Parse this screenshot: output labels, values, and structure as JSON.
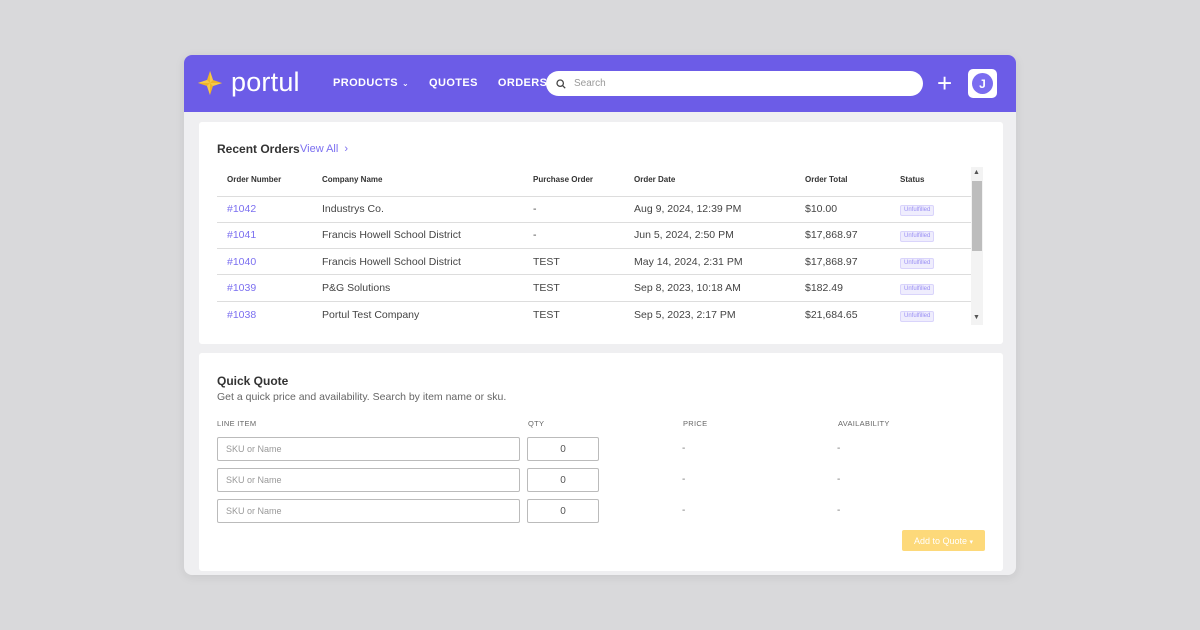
{
  "app": {
    "brand": "portul",
    "colors": {
      "primary": "#6c5ce7",
      "accent_link": "#7b6ff0",
      "button_yellow": "#fdd97a",
      "logo_gold": "#f0b429"
    }
  },
  "nav": {
    "items": [
      {
        "label": "PRODUCTS",
        "has_dropdown": true
      },
      {
        "label": "QUOTES",
        "has_dropdown": false
      },
      {
        "label": "ORDERS",
        "has_dropdown": false
      }
    ],
    "search_placeholder": "Search",
    "add_icon": "plus-icon",
    "avatar_initial": "J"
  },
  "recent_orders": {
    "title": "Recent Orders",
    "view_all": "View All",
    "columns": [
      "Order Number",
      "Company Name",
      "Purchase Order",
      "Order Date",
      "Order Total",
      "Status"
    ],
    "rows": [
      {
        "number": "#1042",
        "company": "Industrys Co.",
        "po": "-",
        "date": "Aug 9, 2024, 12:39 PM",
        "total": "$10.00",
        "status": "Unfulfilled"
      },
      {
        "number": "#1041",
        "company": "Francis Howell School District",
        "po": "-",
        "date": "Jun 5, 2024, 2:50 PM",
        "total": "$17,868.97",
        "status": "Unfulfilled"
      },
      {
        "number": "#1040",
        "company": "Francis Howell School District",
        "po": "TEST",
        "date": "May 14, 2024, 2:31 PM",
        "total": "$17,868.97",
        "status": "Unfulfilled"
      },
      {
        "number": "#1039",
        "company": "P&G Solutions",
        "po": "TEST",
        "date": "Sep 8, 2023, 10:18 AM",
        "total": "$182.49",
        "status": "Unfulfilled"
      },
      {
        "number": "#1038",
        "company": "Portul Test Company",
        "po": "TEST",
        "date": "Sep 5, 2023, 2:17 PM",
        "total": "$21,684.65",
        "status": "Unfulfilled"
      }
    ]
  },
  "quick_quote": {
    "title": "Quick Quote",
    "subtitle": "Get a quick price and availability. Search by item name or sku.",
    "columns": [
      "LINE ITEM",
      "QTY",
      "PRICE",
      "AVAILABILITY"
    ],
    "lines": [
      {
        "placeholder": "SKU or Name",
        "qty": "0",
        "price": "-",
        "availability": "-"
      },
      {
        "placeholder": "SKU or Name",
        "qty": "0",
        "price": "-",
        "availability": "-"
      },
      {
        "placeholder": "SKU or Name",
        "qty": "0",
        "price": "-",
        "availability": "-"
      }
    ],
    "add_button": "Add to Quote"
  }
}
